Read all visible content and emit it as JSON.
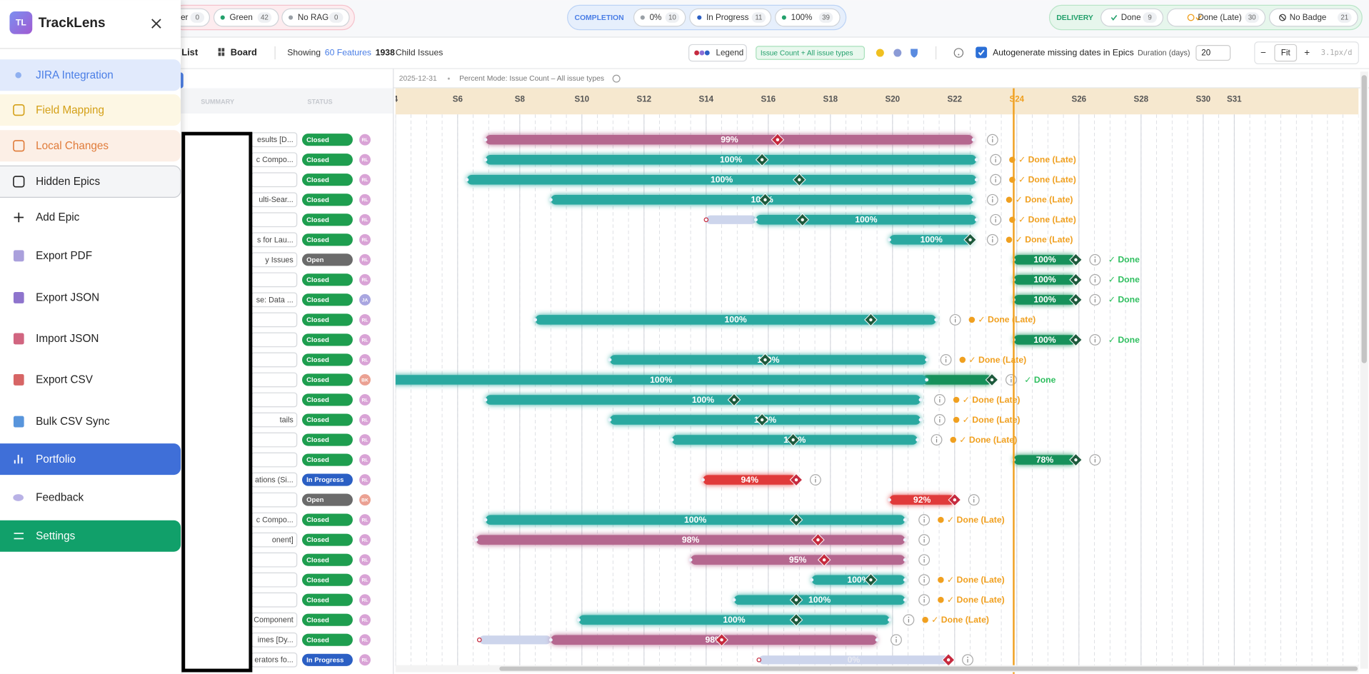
{
  "sidebar": {
    "logo": "TL",
    "app_name": "TrackLens",
    "menu": [
      {
        "label": "JIRA Integration",
        "fg": "#4a7ee6",
        "bg": "#e1eafc"
      },
      {
        "label": "Field Mapping",
        "fg": "#d4a017",
        "bg": "#fdf7e4"
      },
      {
        "label": "Local Changes",
        "fg": "#e07b39",
        "bg": "#fcefe6"
      },
      {
        "label": "Hidden Epics",
        "fg": "#222222",
        "bg": "#f4f5f7",
        "border": "#c9ccd1"
      },
      {
        "label": "Add Epic",
        "fg": "#222222"
      },
      {
        "label": "Export PDF",
        "fg": "#222222"
      },
      {
        "label": "Export JSON",
        "fg": "#222222"
      },
      {
        "label": "Import JSON",
        "fg": "#222222"
      },
      {
        "label": "Export CSV",
        "fg": "#222222"
      },
      {
        "label": "Bulk CSV Sync",
        "fg": "#222222"
      },
      {
        "label": "Portfolio",
        "fg": "#ffffff",
        "bg": "#3f6fd8"
      },
      {
        "label": "Feedback",
        "fg": "#222222"
      },
      {
        "label": "Settings",
        "fg": "#ffffff",
        "bg": "#11a06a"
      }
    ]
  },
  "rag_filters": [
    {
      "label": "er",
      "count": 0
    },
    {
      "label": "Green",
      "count": 42
    },
    {
      "label": "No RAG",
      "count": 0
    }
  ],
  "completion": {
    "label": "COMPLETION",
    "chips": [
      {
        "label": "0%",
        "count": 10
      },
      {
        "label": "In Progress",
        "count": 11
      },
      {
        "label": "100%",
        "count": 39
      }
    ]
  },
  "delivery": {
    "label": "DELIVERY",
    "chips": [
      {
        "label": "Done",
        "count": 9
      },
      {
        "label": "Done (Late)",
        "count": 30
      },
      {
        "label": "No Badge",
        "count": 21
      }
    ]
  },
  "toolbar": {
    "list": "List",
    "board": "Board",
    "showing": "Showing",
    "features": "60 Features",
    "child_count": 1938,
    "child_label": "Child Issues",
    "legend": "Legend",
    "mode": "Issue Count + All issue types",
    "autogenerate": "Autogenerate missing dates in Epics",
    "autogenerate_checked": true,
    "duration_label": "Duration (days)",
    "duration": 20,
    "zoom_out": "−",
    "fit": "Fit",
    "zoom_in": "+",
    "zoom_scale": "3.1px/d"
  },
  "table": {
    "columns": [
      "SUMMARY",
      "STATUS"
    ],
    "status_colors": {
      "Closed": "#1e9e4f",
      "Open": "#6b6b6b",
      "In Progress": "#2b5fc4"
    },
    "avatar_colors": {
      "RL": "#d9a3d6",
      "JA": "#a9a6e0",
      "BK": "#eba193"
    }
  },
  "timeline": {
    "date": "2025-12-31",
    "mode_note": "Percent Mode: Issue Count – All issue types",
    "xlim": [
      4,
      35
    ],
    "ticks": [
      4,
      {
        "value": 6,
        "label": "S6"
      },
      {
        "value": 8,
        "label": "S8"
      },
      {
        "value": 10,
        "label": "S10"
      },
      {
        "value": 12,
        "label": "S12"
      },
      {
        "value": 14,
        "label": "S14"
      },
      {
        "value": 16,
        "label": "S16"
      },
      {
        "value": 18,
        "label": "S18"
      },
      {
        "value": 20,
        "label": "S20"
      },
      {
        "value": 22,
        "label": "S22"
      },
      {
        "value": 24,
        "label": "S24"
      },
      {
        "value": 26,
        "label": "S26"
      },
      {
        "value": 28,
        "label": "S28"
      },
      {
        "value": 30,
        "label": "S30"
      },
      {
        "value": 31,
        "label": "S31"
      }
    ],
    "today": 23.9,
    "badge_styles": {
      "✓ Done (Late)": {
        "color": "#f0a020",
        "icon": true
      },
      "✓ Done": {
        "color": "#2fbf5f",
        "icon": false
      }
    },
    "rows": [
      {
        "summary": "esults [D...",
        "status": "Closed",
        "avatar": "RL",
        "start": 6.9,
        "end": 22.6,
        "marker": 16.3,
        "color": "#b5678f",
        "marker_color": "#c62a3e",
        "percent": "99%"
      },
      {
        "summary": "c Compo...",
        "status": "Closed",
        "avatar": "RL",
        "start": 6.9,
        "end": 22.7,
        "marker": 15.8,
        "color": "#2aa9a0",
        "marker_color": "#1d5a3c",
        "percent": "100%",
        "badge": "✓ Done (Late)"
      },
      {
        "status": "Closed",
        "avatar": "RL",
        "start": 6.3,
        "end": 22.7,
        "marker": 17.0,
        "color": "#2aa9a0",
        "marker_color": "#1d5a3c",
        "percent": "100%",
        "badge": "✓ Done (Late)"
      },
      {
        "summary": "ulti-Sear...",
        "status": "Closed",
        "avatar": "RL",
        "start": 9.0,
        "end": 22.6,
        "marker": 15.9,
        "color": "#2aa9a0",
        "marker_color": "#1d5a3c",
        "percent": "100%",
        "badge": "✓ Done (Late)"
      },
      {
        "status": "Closed",
        "avatar": "RL",
        "ghost_start": 14.0,
        "start": 15.6,
        "end": 22.7,
        "marker": 17.1,
        "color": "#2aa9a0",
        "marker_color": "#1d5a3c",
        "percent": "100%",
        "badge": "✓ Done (Late)"
      },
      {
        "summary": "s for Lau...",
        "status": "Closed",
        "avatar": "RL",
        "start": 19.9,
        "end": 22.6,
        "marker": 22.5,
        "color": "#2aa9a0",
        "marker_color": "#1d5a3c",
        "percent": "100%",
        "badge": "✓ Done (Late)"
      },
      {
        "summary": "y Issues",
        "status": "Open",
        "avatar": "RL",
        "start": 23.9,
        "end": 25.9,
        "marker": 25.9,
        "color": "#16915a",
        "marker_color": "#1d5a3c",
        "percent": "100%",
        "badge": "✓ Done"
      },
      {
        "status": "Closed",
        "avatar": "RL",
        "start": 23.9,
        "end": 25.9,
        "marker": 25.9,
        "color": "#16915a",
        "marker_color": "#1d5a3c",
        "percent": "100%",
        "badge": "✓ Done"
      },
      {
        "summary": "se: Data ...",
        "status": "Closed",
        "avatar": "JA",
        "start": 23.9,
        "end": 25.9,
        "marker": 25.9,
        "color": "#16915a",
        "marker_color": "#1d5a3c",
        "percent": "100%",
        "badge": "✓ Done"
      },
      {
        "status": "Closed",
        "avatar": "RL",
        "start": 8.5,
        "end": 21.4,
        "marker": 19.3,
        "color": "#2aa9a0",
        "marker_color": "#1d5a3c",
        "percent": "100%",
        "badge": "✓ Done (Late)"
      },
      {
        "status": "Closed",
        "avatar": "RL",
        "start": 23.9,
        "end": 25.9,
        "marker": 25.9,
        "color": "#16915a",
        "marker_color": "#1d5a3c",
        "percent": "100%",
        "badge": "✓ Done"
      },
      {
        "status": "Closed",
        "avatar": "RL",
        "start": 10.9,
        "end": 21.1,
        "marker": 15.9,
        "color": "#2aa9a0",
        "marker_color": "#1d5a3c",
        "percent": "100%",
        "badge": "✓ Done (Late)"
      },
      {
        "status": "Closed",
        "avatar": "BK",
        "start": 3.5,
        "end": 21.1,
        "extension_end": 23.2,
        "extension_color": "#16915a",
        "marker": 23.2,
        "color": "#2aa9a0",
        "marker_color": "#1d5a3c",
        "percent": "100%",
        "badge": "✓ Done"
      },
      {
        "status": "Closed",
        "avatar": "RL",
        "start": 6.9,
        "end": 20.9,
        "marker": 14.9,
        "color": "#2aa9a0",
        "marker_color": "#1d5a3c",
        "percent": "100%",
        "badge": "✓ Done (Late)"
      },
      {
        "summary": "tails",
        "status": "Closed",
        "avatar": "RL",
        "start": 10.9,
        "end": 20.9,
        "marker": 15.8,
        "color": "#2aa9a0",
        "marker_color": "#1d5a3c",
        "percent": "100%",
        "badge": "✓ Done (Late)"
      },
      {
        "status": "Closed",
        "avatar": "RL",
        "start": 12.9,
        "end": 20.8,
        "marker": 16.8,
        "color": "#2aa9a0",
        "marker_color": "#1d5a3c",
        "percent": "100%",
        "badge": "✓ Done (Late)"
      },
      {
        "status": "Closed",
        "avatar": "RL",
        "start": 23.9,
        "end": 25.9,
        "marker": 25.9,
        "color": "#16915a",
        "marker_color": "#1d5a3c",
        "percent": "78%"
      },
      {
        "summary": "ations (Si...",
        "status": "In Progress",
        "avatar": "RL",
        "start": 13.9,
        "end": 16.9,
        "marker": 16.9,
        "color": "#e03a3a",
        "marker_color": "#c62a3e",
        "percent": "94%"
      },
      {
        "status": "Open",
        "avatar": "BK",
        "start": 19.9,
        "end": 22.0,
        "marker": 22.0,
        "color": "#e03a3a",
        "marker_color": "#c62a3e",
        "percent": "92%"
      },
      {
        "summary": "c Compo...",
        "status": "Closed",
        "avatar": "RL",
        "start": 6.9,
        "end": 20.4,
        "marker": 16.9,
        "color": "#2aa9a0",
        "marker_color": "#1d5a3c",
        "percent": "100%",
        "badge": "✓ Done (Late)"
      },
      {
        "summary": "onent]",
        "status": "Closed",
        "avatar": "RL",
        "start": 6.6,
        "end": 20.4,
        "marker": 17.6,
        "color": "#b5678f",
        "marker_color": "#c62a3e",
        "percent": "98%"
      },
      {
        "status": "Closed",
        "avatar": "RL",
        "start": 13.5,
        "end": 20.4,
        "marker": 17.8,
        "color": "#b5678f",
        "marker_color": "#c62a3e",
        "percent": "95%"
      },
      {
        "status": "Closed",
        "avatar": "RL",
        "start": 17.4,
        "end": 20.4,
        "marker": 19.3,
        "color": "#2aa9a0",
        "marker_color": "#1d5a3c",
        "percent": "100%",
        "badge": "✓ Done (Late)"
      },
      {
        "status": "Closed",
        "avatar": "RL",
        "start": 14.9,
        "end": 20.4,
        "marker": 16.9,
        "color": "#2aa9a0",
        "marker_color": "#1d5a3c",
        "percent": "100%",
        "badge": "✓ Done (Late)"
      },
      {
        "summary": "Component",
        "status": "Closed",
        "avatar": "RL",
        "start": 9.9,
        "end": 19.9,
        "marker": 16.9,
        "color": "#2aa9a0",
        "marker_color": "#1d5a3c",
        "percent": "100%",
        "badge": "✓ Done (Late)"
      },
      {
        "summary": "imes [Dy...",
        "status": "Closed",
        "avatar": "RL",
        "ghost_start": 6.7,
        "start": 9.0,
        "end": 19.5,
        "marker": 14.5,
        "color": "#b5678f",
        "marker_color": "#c62a3e",
        "percent": "98%"
      },
      {
        "summary": "erators fo...",
        "status": "In Progress",
        "avatar": "RL",
        "ghost_start": 15.7,
        "start": 21.8,
        "end": 21.8,
        "marker": 21.8,
        "color": "#b5678f",
        "marker_color": "#c62a3e",
        "percent": "0%"
      }
    ]
  }
}
